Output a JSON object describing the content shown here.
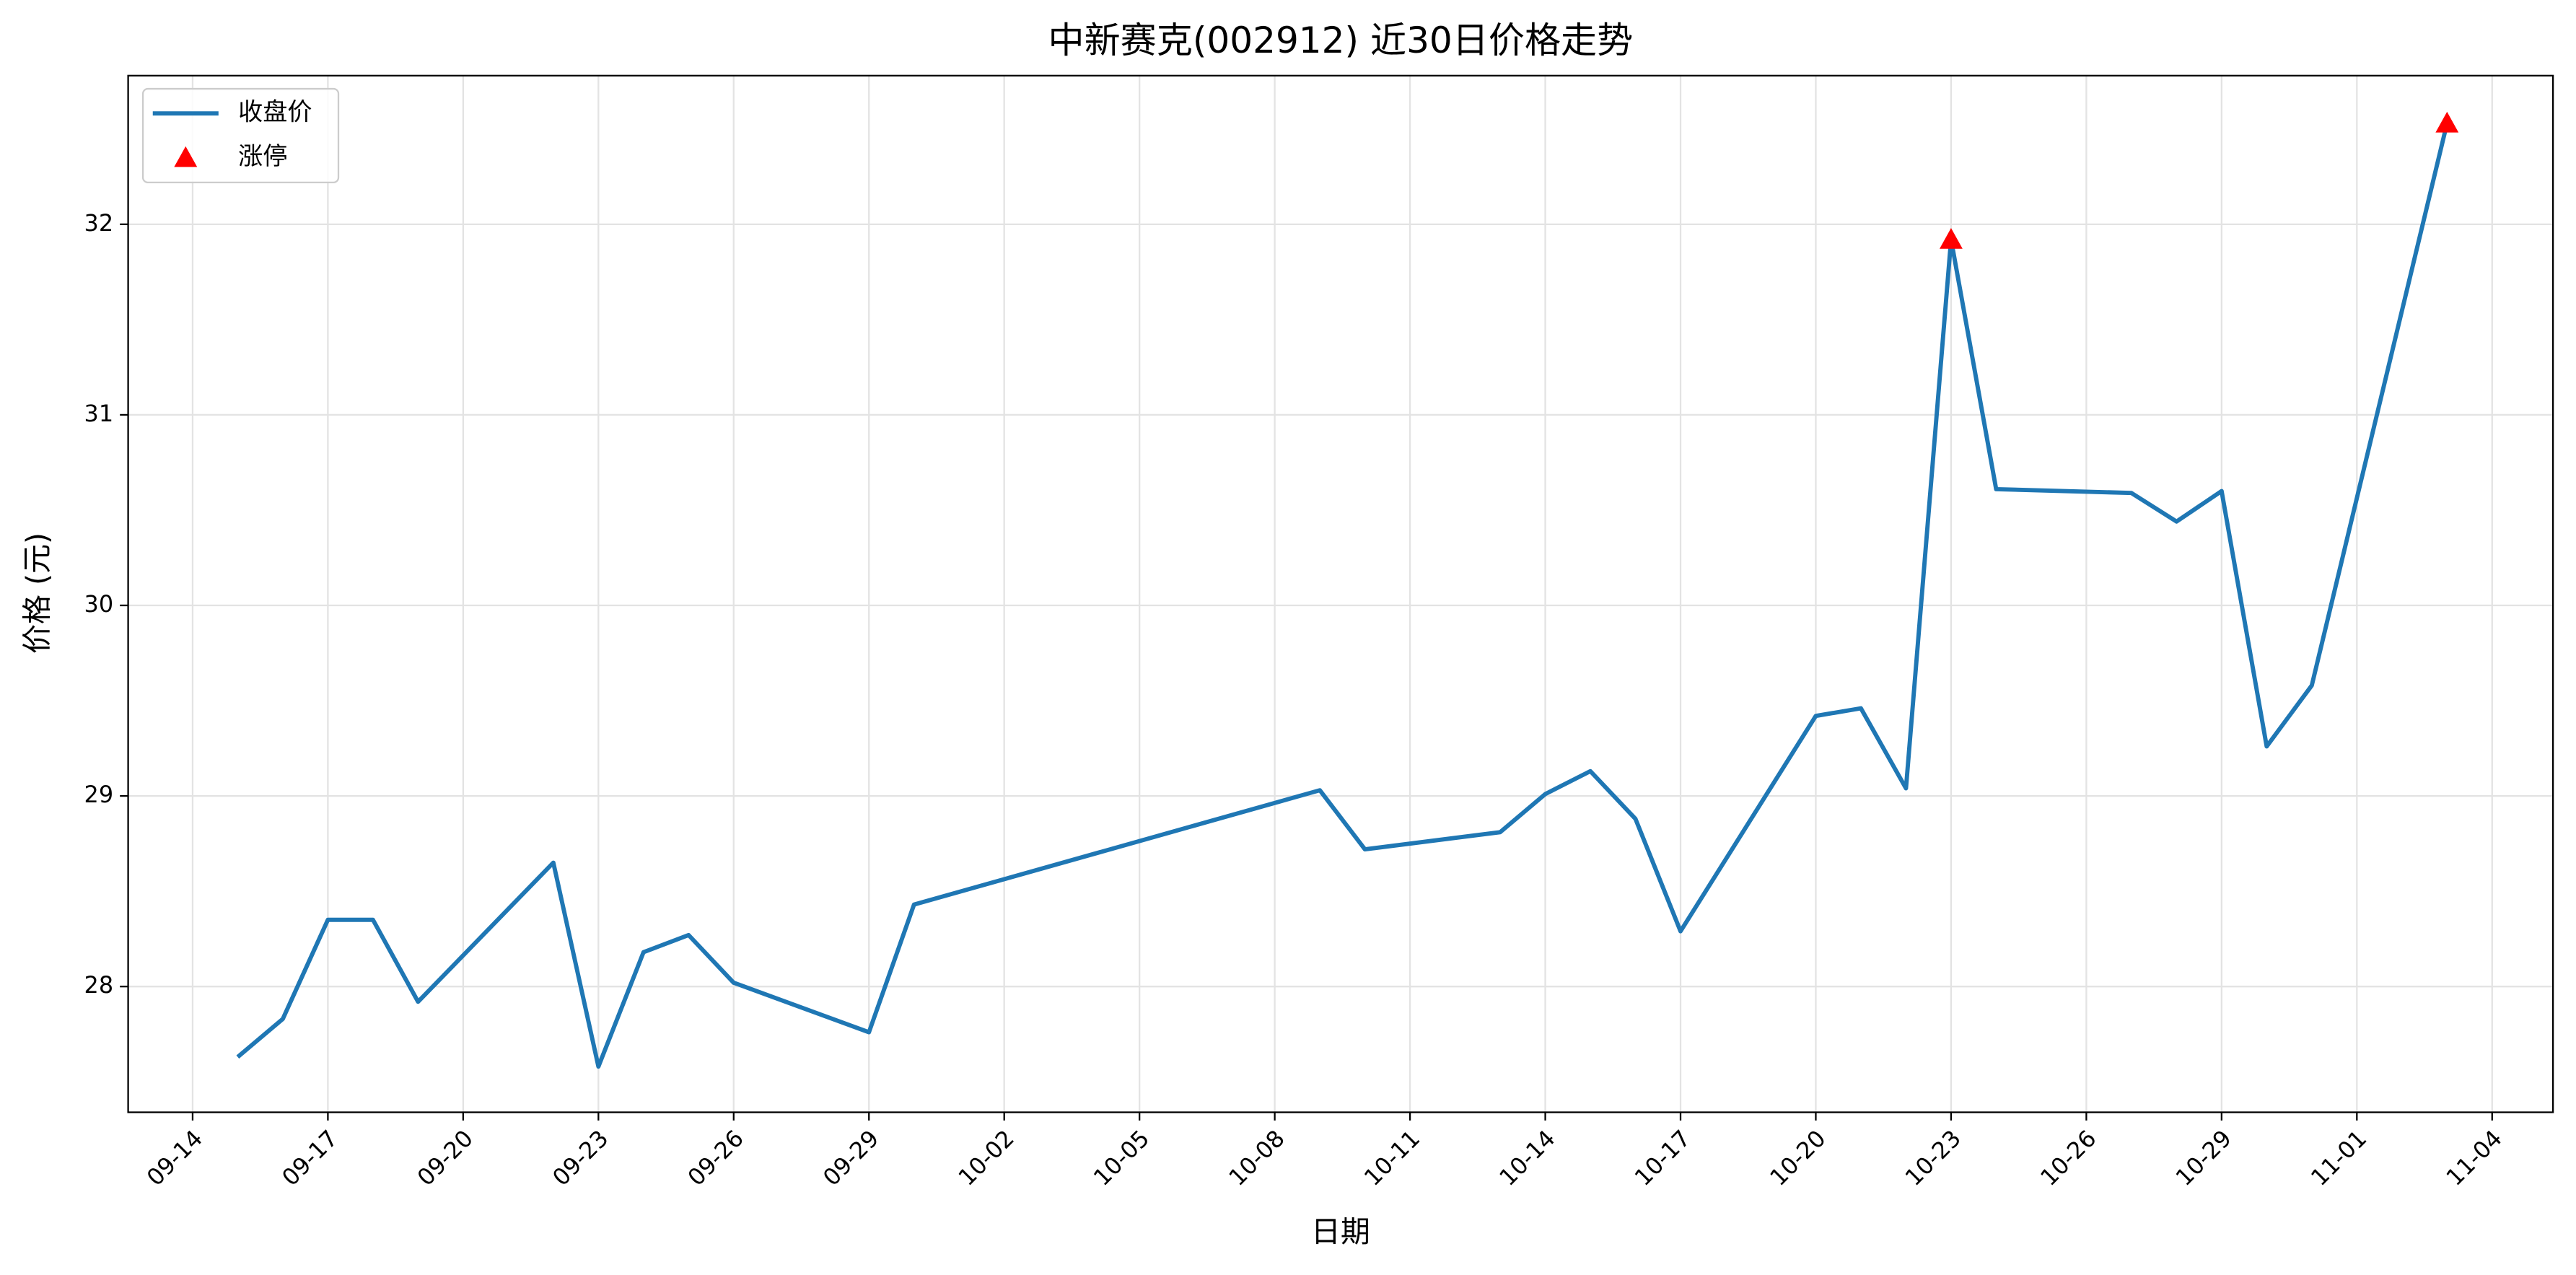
{
  "chart_data": {
    "type": "line",
    "title": "中新赛克(002912) 近30日价格走势",
    "x_label": "日期",
    "y_label": "价格 (元)",
    "series": [
      {
        "name": "收盘价",
        "type": "line",
        "color": "#1f77b4",
        "x": [
          "09-15",
          "09-16",
          "09-17",
          "09-18",
          "09-19",
          "09-22",
          "09-23",
          "09-24",
          "09-25",
          "09-26",
          "09-29",
          "09-30",
          "10-09",
          "10-10",
          "10-13",
          "10-14",
          "10-15",
          "10-16",
          "10-17",
          "10-20",
          "10-21",
          "10-22",
          "10-23",
          "10-24",
          "10-27",
          "10-28",
          "10-29",
          "10-30",
          "10-31",
          "11-03"
        ],
        "values": [
          27.63,
          27.83,
          28.35,
          28.35,
          27.92,
          28.65,
          27.58,
          28.18,
          28.27,
          28.02,
          27.76,
          28.43,
          29.03,
          28.72,
          28.81,
          29.01,
          29.13,
          28.88,
          28.29,
          29.42,
          29.46,
          29.04,
          31.92,
          30.61,
          30.59,
          30.44,
          30.6,
          29.26,
          29.58,
          32.53
        ]
      },
      {
        "name": "涨停",
        "type": "scatter",
        "marker": "triangle",
        "color": "#ff0000",
        "x": [
          "10-23",
          "11-03"
        ],
        "values": [
          31.92,
          32.53
        ]
      }
    ],
    "ylim": [
      27.34,
      32.78
    ],
    "yticks": [
      28,
      29,
      30,
      31,
      32
    ],
    "xticks": [
      "09-14",
      "09-17",
      "09-20",
      "09-23",
      "09-26",
      "09-29",
      "10-02",
      "10-05",
      "10-08",
      "10-11",
      "10-14",
      "10-17",
      "10-20",
      "10-23",
      "10-26",
      "10-29",
      "11-01",
      "11-04"
    ],
    "grid": true,
    "legend": "upper left"
  }
}
